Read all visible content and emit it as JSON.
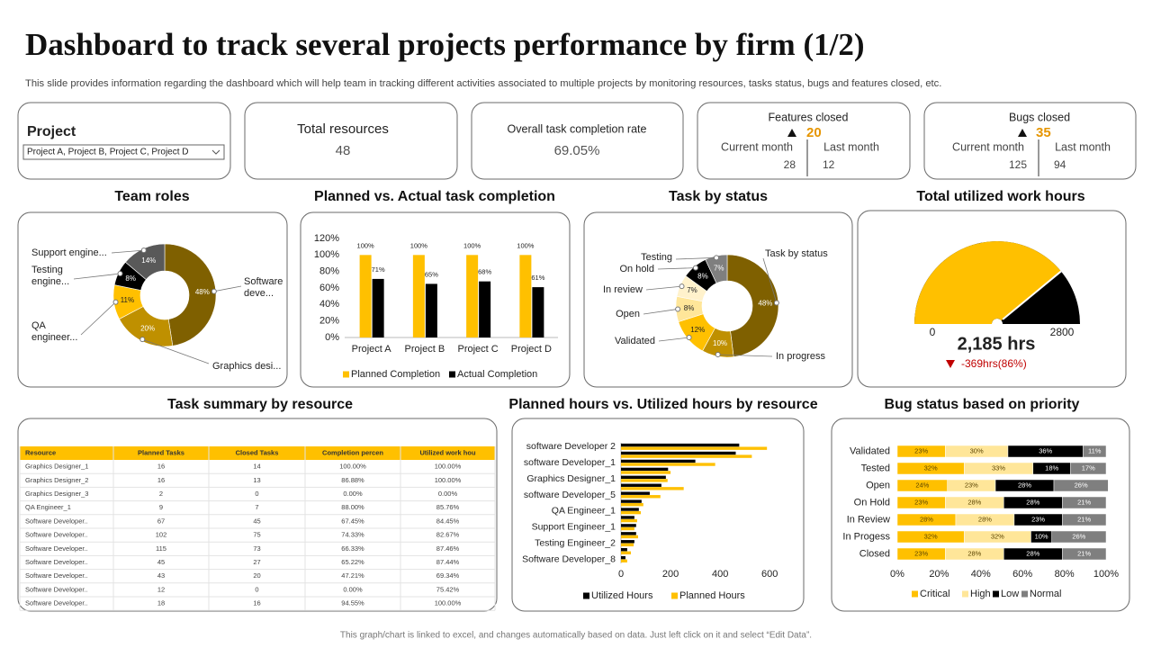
{
  "header": {
    "title": "Dashboard to track several projects performance by firm (1/2)",
    "subtitle": "This slide provides information regarding the dashboard which will help team in tracking  different activities associated to multiple projects by monitoring resources, tasks status, bugs and features closed, etc.",
    "footer": "This graph/chart is linked to excel, and changes automatically based on data. Just left click on it and select “Edit Data”."
  },
  "cards": [
    {
      "label": "Project",
      "value": "Project A, Project B, Project C, Project D"
    },
    {
      "label": "Total resources",
      "value": 48
    },
    {
      "label": "Overall task completion rate",
      "value": "69.05%"
    },
    {
      "label": "Features closed",
      "value": 20,
      "current_label": "Current month",
      "current": 28,
      "last_label": "Last month",
      "last": 12
    },
    {
      "label": "Bugs closed",
      "value": 35,
      "current_label": "Current month",
      "current": 125,
      "last_label": "Last month",
      "last": 94
    }
  ],
  "chart_data": [
    {
      "type": "donut",
      "title": "Team roles",
      "categories": [
        "Software deve...",
        "Graphics desi...",
        "QA engineer...",
        "Testing engine...",
        "Support engine..."
      ],
      "values": [
        48,
        20,
        11,
        8,
        14
      ],
      "value_labels": [
        "48%",
        "20%",
        "11%",
        "8%",
        "14%"
      ],
      "colors": [
        "#7f6000",
        "#bf9000",
        "#ffc000",
        "#000000",
        "#595959"
      ]
    },
    {
      "type": "bar",
      "title": "Planned vs. Actual task completion",
      "categories": [
        "Project A",
        "Project B",
        "Project C",
        "Project D"
      ],
      "series": [
        {
          "name": "Planned Completion",
          "color": "#ffc000",
          "values": [
            100,
            100,
            100,
            100
          ],
          "value_labels": [
            "100%",
            "100%",
            "100%",
            "100%"
          ]
        },
        {
          "name": "Actual Completion",
          "color": "#000000",
          "values": [
            71,
            65,
            68,
            61
          ],
          "value_labels": [
            "71%",
            "65%",
            "68%",
            "61%"
          ]
        }
      ],
      "ylim": [
        0,
        120
      ],
      "yticks": [
        {
          "value": 0,
          "label": "0%"
        },
        {
          "value": 20,
          "label": "20%"
        },
        {
          "value": 40,
          "label": "40%"
        },
        {
          "value": 60,
          "label": "60%"
        },
        {
          "value": 80,
          "label": "80%"
        },
        {
          "value": 100,
          "label": "100%"
        },
        {
          "value": 120,
          "label": "120%"
        }
      ],
      "grid": false,
      "legend": "bottom"
    },
    {
      "type": "donut",
      "title": "Task by status",
      "categories": [
        "Task by status",
        "In progress",
        "Validated",
        "Open",
        "In review",
        "On hold",
        "Testing"
      ],
      "values": [
        48,
        10,
        12,
        8,
        7,
        8,
        7
      ],
      "value_labels": [
        "48%",
        "10%",
        "12%",
        "8%",
        "7%",
        "8%",
        "7%"
      ],
      "colors": [
        "#7f6000",
        "#bf9000",
        "#ffc000",
        "#ffe699",
        "#fff2cc",
        "#000000",
        "#7f7f7f"
      ]
    },
    {
      "type": "gauge",
      "title": "Total utilized work hours",
      "value": 2185,
      "value_label": "2,185 hrs",
      "delta_label": "-369hrs(86%)",
      "ylim": [
        0,
        2800
      ],
      "yticks": [
        0,
        2800
      ],
      "color": "#ffc000",
      "track_color": "#000000"
    },
    {
      "type": "hbar",
      "title": "Planned hours vs. Utilized hours by resource",
      "categories": [
        "software Developer 2",
        null,
        "software Developer_1",
        null,
        "Graphics Designer_1",
        null,
        "software Developer_5",
        null,
        "QA Engineer_1",
        null,
        "Support Engineer_1",
        null,
        "Testing Engineer_2",
        null,
        "Software Developer_8"
      ],
      "series": [
        {
          "name": "Utilized Hours",
          "color": "#000000",
          "values": [
            477,
            463,
            300,
            190,
            181,
            163,
            116,
            83,
            72,
            54,
            61,
            61,
            54,
            25,
            18
          ]
        },
        {
          "name": "Planned Hours",
          "color": "#ffc000",
          "values": [
            589,
            528,
            380,
            200,
            188,
            253,
            159,
            90,
            80,
            65,
            54,
            69,
            51,
            40,
            25
          ]
        }
      ],
      "xlim": [
        0,
        690
      ],
      "xticks": [
        0,
        200,
        400,
        600
      ],
      "grid": false,
      "legend": "bottom"
    },
    {
      "type": "stacked_hbar",
      "title": "Bug status based on priority",
      "categories": [
        "Validated",
        "Tested",
        "Open",
        "On Hold",
        "In Review",
        "In Progess",
        "Closed"
      ],
      "series": [
        {
          "name": "Critical",
          "color": "#ffc000",
          "values": [
            23,
            32,
            24,
            23,
            28,
            32,
            23
          ],
          "value_labels": [
            "23%",
            "32%",
            "24%",
            "23%",
            "28%",
            "32%",
            "23%"
          ]
        },
        {
          "name": "High",
          "color": "#ffe699",
          "values": [
            30,
            33,
            23,
            28,
            28,
            32,
            28
          ],
          "value_labels": [
            "30%",
            "33%",
            "23%",
            "28%",
            "28%",
            "32%",
            "28%"
          ]
        },
        {
          "name": "Low",
          "color": "#000000",
          "values": [
            36,
            18,
            28,
            28,
            23,
            10,
            28
          ],
          "value_labels": [
            "36%",
            "18%",
            "28%",
            "28%",
            "23%",
            "10%",
            "28%"
          ]
        },
        {
          "name": "Normal",
          "color": "#7f7f7f",
          "values": [
            11,
            17,
            26,
            21,
            21,
            26,
            21
          ],
          "value_labels": [
            "11%",
            "17%",
            "26%",
            "21%",
            "21%",
            "26%",
            "21%"
          ]
        }
      ],
      "xlim": [
        0,
        100
      ],
      "xticks": [
        {
          "value": 0,
          "label": "0%"
        },
        {
          "value": 20,
          "label": "20%"
        },
        {
          "value": 40,
          "label": "40%"
        },
        {
          "value": 60,
          "label": "60%"
        },
        {
          "value": 80,
          "label": "80%"
        },
        {
          "value": 100,
          "label": "100%"
        }
      ],
      "grid": false,
      "legend": "bottom"
    }
  ],
  "table": {
    "title": "Task summary by resource",
    "columns": [
      "Resource",
      "Planned Tasks",
      "Closed Tasks",
      "Completion percen",
      "Utilized work hou"
    ],
    "rows": [
      [
        "Graphics Designer_1",
        "16",
        "14",
        "100.00%",
        "100.00%"
      ],
      [
        "Graphics Designer_2",
        "16",
        "13",
        "86.88%",
        "100.00%"
      ],
      [
        "Graphics Designer_3",
        "2",
        "0",
        "0.00%",
        "0.00%"
      ],
      [
        "QA Engineer_1",
        "9",
        "7",
        "88.00%",
        "85.76%"
      ],
      [
        "Software Developer..",
        "67",
        "45",
        "67.45%",
        "84.45%"
      ],
      [
        "Software Developer..",
        "102",
        "75",
        "74.33%",
        "82.67%"
      ],
      [
        "Software Developer..",
        "115",
        "73",
        "66.33%",
        "87.46%"
      ],
      [
        "Software Developer..",
        "45",
        "27",
        "65.22%",
        "87.44%"
      ],
      [
        "Software Developer..",
        "43",
        "20",
        "47.21%",
        "69.34%"
      ],
      [
        "Software Developer..",
        "12",
        "0",
        "0.00%",
        "75.42%"
      ],
      [
        "Software Developer..",
        "18",
        "16",
        "94.55%",
        "100.00%"
      ]
    ]
  }
}
